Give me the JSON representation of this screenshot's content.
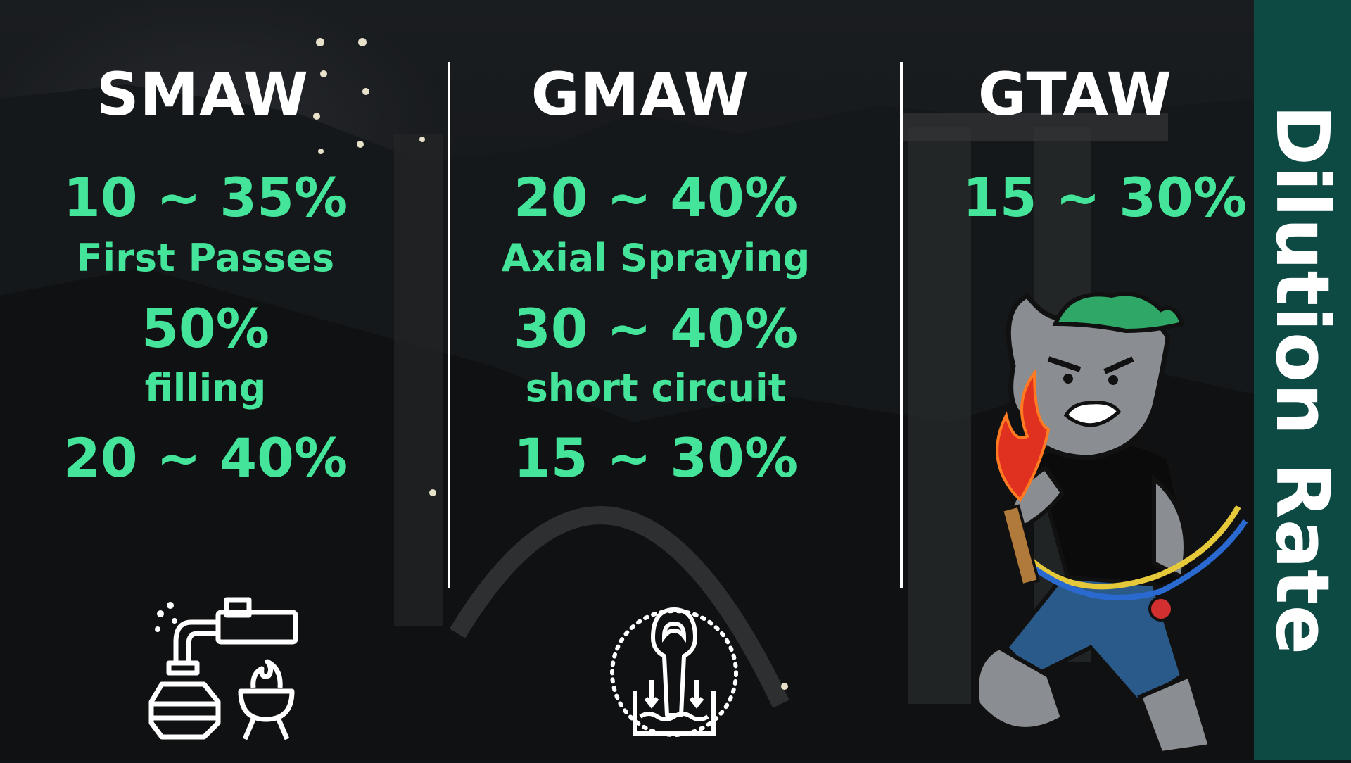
{
  "side_title": "Dilution Rate",
  "colors": {
    "accent_green": "#44e59a",
    "band_teal": "#0e4a44",
    "title_white": "#ffffff"
  },
  "columns": [
    {
      "title": "SMAW",
      "lines": [
        {
          "kind": "value",
          "text": "10 ~ 35%"
        },
        {
          "kind": "label",
          "text": "First Passes"
        },
        {
          "kind": "value",
          "text": "50%"
        },
        {
          "kind": "label",
          "text": "filling"
        },
        {
          "kind": "value",
          "text": "20 ~ 40%"
        }
      ],
      "icon": "pipe-tank-fire-icon"
    },
    {
      "title": "GMAW",
      "lines": [
        {
          "kind": "value",
          "text": "20 ~ 40%"
        },
        {
          "kind": "label",
          "text": "Axial Spraying"
        },
        {
          "kind": "value",
          "text": "30 ~ 40%"
        },
        {
          "kind": "label",
          "text": "short circuit"
        },
        {
          "kind": "value",
          "text": "15 ~ 30%"
        }
      ],
      "icon": "molten-pour-icon"
    },
    {
      "title": "GTAW",
      "lines": [
        {
          "kind": "value",
          "text": "15 ~ 30%"
        }
      ],
      "icon": "welder-cat-mascot"
    }
  ]
}
